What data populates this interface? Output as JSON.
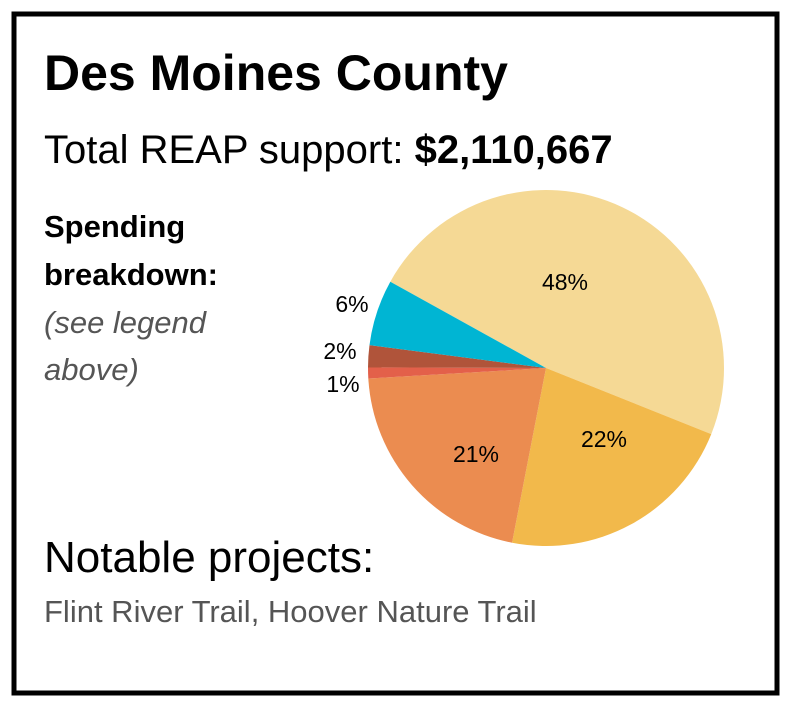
{
  "chart_data": {
    "type": "pie",
    "title": "Des Moines County",
    "total_label": "Total REAP support: ",
    "total_value": "$2,110,667",
    "side_title": [
      "Spending",
      "breakdown:"
    ],
    "side_note": [
      "(see legend",
      "above)"
    ],
    "projects_label": "Notable projects:",
    "projects": "Flint River Trail, Hoover Nature Trail",
    "values": [
      48,
      22,
      21,
      1,
      2,
      6
    ],
    "value_labels": [
      "48%",
      "22%",
      "21%",
      "1%",
      "2%",
      "6%"
    ],
    "colors": [
      "#f5d995",
      "#f2b94b",
      "#eb8c50",
      "#e3604a",
      "#b0543a",
      "#00b5d3"
    ]
  }
}
